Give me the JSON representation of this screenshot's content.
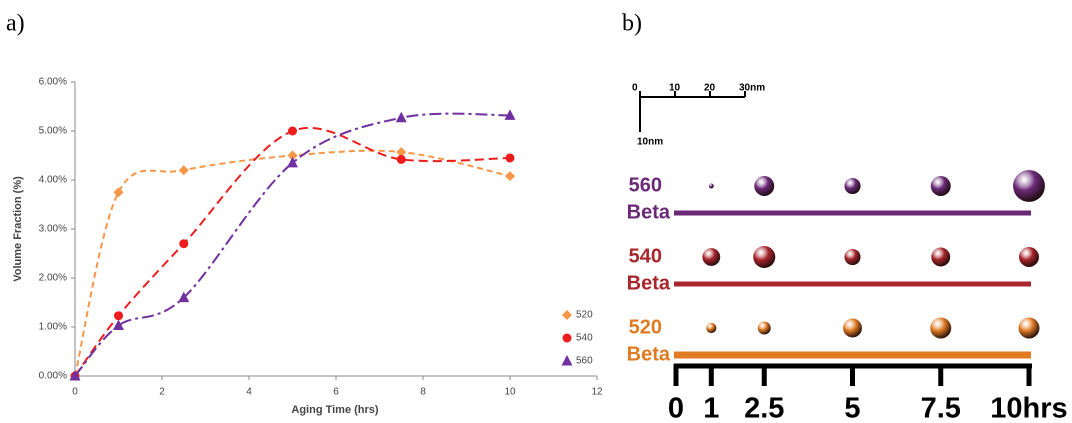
{
  "panel_labels": [
    "a)",
    "b)"
  ],
  "chart_data": [
    {
      "type": "line",
      "x_label": "Aging Time (hrs)",
      "y_label": "Volume Fraction (%)",
      "xlim": [
        0,
        12
      ],
      "xticks": [
        0,
        2,
        4,
        6,
        8,
        10,
        12
      ],
      "ylim": [
        0,
        6
      ],
      "yticks": [
        {
          "value": 0,
          "label": "0.00%"
        },
        {
          "value": 1,
          "label": "1.00%"
        },
        {
          "value": 2,
          "label": "2.00%"
        },
        {
          "value": 3,
          "label": "3.00%"
        },
        {
          "value": 4,
          "label": "4.00%"
        },
        {
          "value": 5,
          "label": "5.00%"
        },
        {
          "value": 6,
          "label": "6.00%"
        }
      ],
      "legend": "lower right",
      "x": [
        0,
        1,
        2.5,
        5,
        7.5,
        10
      ],
      "series": [
        {
          "name": "520",
          "color": "#f79646",
          "marker": "diamond",
          "values": [
            0,
            3.75,
            4.2,
            4.5,
            4.57,
            4.08
          ]
        },
        {
          "name": "540",
          "color": "#ee1c1c",
          "marker": "circle",
          "values": [
            0,
            1.23,
            2.7,
            5.0,
            4.42,
            4.45
          ]
        },
        {
          "name": "560",
          "color": "#7030a0",
          "marker": "triangle",
          "values": [
            0,
            1.03,
            1.6,
            4.35,
            5.27,
            5.32
          ]
        }
      ]
    },
    {
      "type": "bubble",
      "xticks": [
        0,
        1,
        2.5,
        5,
        7.5,
        {
          "value": 10,
          "label": "10hrs"
        }
      ],
      "scale_ticks": [
        0,
        10,
        20,
        {
          "value": 30,
          "label": "30nm"
        }
      ],
      "scale_vertical": {
        "value": 10,
        "label": "10nm"
      },
      "x": [
        1,
        2.5,
        5,
        7.5,
        10
      ],
      "series": [
        {
          "name": "560",
          "phase": "Beta",
          "color": "#6b2a78",
          "sizes": [
            1.4,
            5.7,
            4.6,
            5.7,
            9.1
          ]
        },
        {
          "name": "540",
          "phase": "Beta",
          "color": "#a8262c",
          "sizes": [
            5.1,
            6.3,
            4.6,
            5.4,
            5.7
          ]
        },
        {
          "name": "520",
          "phase": "Beta",
          "color": "#e07b24",
          "sizes": [
            2.9,
            3.7,
            5.4,
            6.0,
            6.0
          ]
        }
      ]
    }
  ]
}
